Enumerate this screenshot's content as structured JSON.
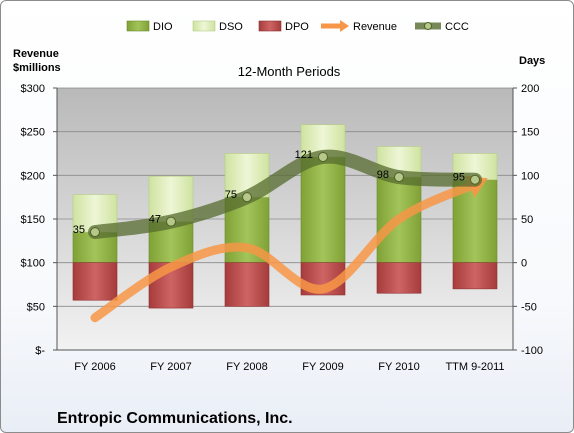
{
  "chart_data": {
    "type": "bar",
    "title": "12-Month Periods",
    "company": "Entropic Communications, Inc.",
    "left_axis": {
      "label_line1": "Revenue",
      "label_line2": "$millions",
      "min": 0,
      "max": 300,
      "ticks": [
        "$-",
        "$50",
        "$100",
        "$150",
        "$200",
        "$250",
        "$300"
      ]
    },
    "right_axis": {
      "label": "Days",
      "min": -100,
      "max": 200,
      "ticks": [
        "-100",
        "-50",
        "0",
        "50",
        "100",
        "150",
        "200"
      ]
    },
    "categories": [
      "FY 2006",
      "FY 2007",
      "FY 2008",
      "FY 2009",
      "FY 2010",
      "TTM 9-2011"
    ],
    "series": [
      {
        "name": "DIO",
        "axis": "days",
        "values": [
          35,
          47,
          75,
          121,
          98,
          95
        ],
        "color": "#8caf3c"
      },
      {
        "name": "DSO",
        "axis": "days",
        "values": [
          43,
          52,
          50,
          37,
          35,
          30
        ],
        "color": "#dcebb4"
      },
      {
        "name": "DPO",
        "axis": "days",
        "values": [
          -43,
          -52,
          -50,
          -37,
          -35,
          -30
        ],
        "color": "#b84b4b"
      },
      {
        "name": "Revenue",
        "axis": "revenue",
        "values": [
          37,
          95,
          117,
          70,
          150,
          190
        ],
        "color": "#f79646"
      },
      {
        "name": "CCC",
        "axis": "days",
        "values": [
          35,
          47,
          75,
          121,
          98,
          95
        ],
        "color": "#556b2f"
      }
    ],
    "data_labels": [
      "35",
      "47",
      "75",
      "121",
      "98",
      "95"
    ],
    "legend_position": "top"
  }
}
